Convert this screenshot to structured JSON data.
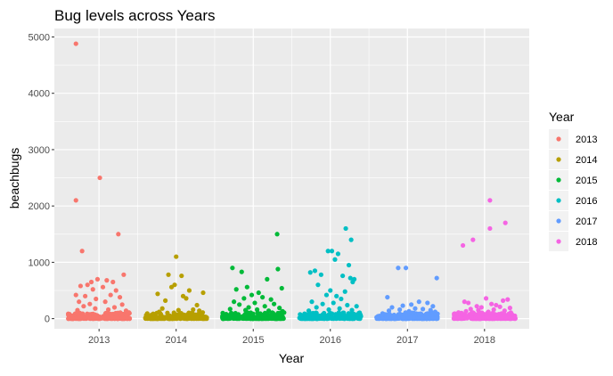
{
  "chart_data": {
    "type": "scatter",
    "title": "Bug levels across Years",
    "xlabel": "Year",
    "ylabel": "beachbugs",
    "categories": [
      "2013",
      "2014",
      "2015",
      "2016",
      "2017",
      "2018"
    ],
    "yticks": [
      0,
      1000,
      2000,
      3000,
      4000,
      5000
    ],
    "ylim": [
      -180,
      5150
    ],
    "grid": true,
    "legend": {
      "title": "Year",
      "placement": "right",
      "entries": [
        "2013",
        "2014",
        "2015",
        "2016",
        "2017",
        "2018"
      ]
    },
    "colors": [
      "#F8766D",
      "#B79F00",
      "#00BA38",
      "#00BFC4",
      "#619CFF",
      "#F564E3"
    ],
    "background": "#EBEBEB",
    "gridline_color": "#FFFFFF",
    "note_jitter": "points jittered horizontally within each year",
    "series": [
      {
        "name": "2013",
        "points": [
          [
            2012.7,
            4880
          ],
          [
            2013.01,
            2500
          ],
          [
            2012.7,
            2100
          ],
          [
            2013.25,
            1500
          ],
          [
            2012.78,
            1200
          ],
          [
            2013.32,
            780
          ],
          [
            2012.98,
            700
          ],
          [
            2013.1,
            680
          ],
          [
            2012.9,
            650
          ],
          [
            2013.18,
            650
          ],
          [
            2012.85,
            600
          ],
          [
            2012.76,
            580
          ],
          [
            2013.05,
            560
          ],
          [
            2012.92,
            520
          ],
          [
            2013.22,
            500
          ],
          [
            2012.7,
            420
          ],
          [
            2012.82,
            400
          ],
          [
            2013.15,
            420
          ],
          [
            2013.27,
            380
          ],
          [
            2012.96,
            350
          ],
          [
            2012.74,
            300
          ],
          [
            2013.08,
            300
          ],
          [
            2012.88,
            260
          ],
          [
            2013.3,
            250
          ],
          [
            2012.8,
            220
          ],
          [
            2013.2,
            200
          ],
          [
            2012.95,
            180
          ],
          [
            2013.12,
            160
          ],
          [
            2012.72,
            150
          ],
          [
            2013.35,
            140
          ]
        ]
      },
      {
        "name": "2014",
        "points": [
          [
            2014.0,
            1100
          ],
          [
            2013.9,
            780
          ],
          [
            2014.07,
            760
          ],
          [
            2013.98,
            600
          ],
          [
            2013.94,
            560
          ],
          [
            2014.17,
            500
          ],
          [
            2014.35,
            460
          ],
          [
            2013.76,
            440
          ],
          [
            2014.09,
            400
          ],
          [
            2014.13,
            360
          ],
          [
            2013.86,
            320
          ],
          [
            2014.27,
            240
          ],
          [
            2013.82,
            180
          ],
          [
            2014.22,
            160
          ],
          [
            2014.03,
            150
          ],
          [
            2014.3,
            140
          ],
          [
            2013.78,
            120
          ]
        ]
      },
      {
        "name": "2015",
        "points": [
          [
            2015.31,
            1500
          ],
          [
            2014.73,
            900
          ],
          [
            2015.32,
            880
          ],
          [
            2014.85,
            830
          ],
          [
            2015.18,
            700
          ],
          [
            2014.92,
            560
          ],
          [
            2015.37,
            540
          ],
          [
            2014.78,
            520
          ],
          [
            2015.07,
            460
          ],
          [
            2014.98,
            420
          ],
          [
            2015.12,
            380
          ],
          [
            2014.88,
            360
          ],
          [
            2015.23,
            340
          ],
          [
            2014.75,
            300
          ],
          [
            2015.02,
            280
          ],
          [
            2015.27,
            260
          ],
          [
            2014.82,
            250
          ],
          [
            2015.15,
            220
          ],
          [
            2014.94,
            200
          ],
          [
            2015.34,
            190
          ],
          [
            2014.7,
            170
          ],
          [
            2015.05,
            160
          ],
          [
            2014.9,
            150
          ],
          [
            2015.2,
            140
          ],
          [
            2015.38,
            130
          ]
        ]
      },
      {
        "name": "2016",
        "points": [
          [
            2016.2,
            1600
          ],
          [
            2016.27,
            1400
          ],
          [
            2015.97,
            1200
          ],
          [
            2016.02,
            1200
          ],
          [
            2016.1,
            1150
          ],
          [
            2016.06,
            1050
          ],
          [
            2016.24,
            950
          ],
          [
            2015.8,
            850
          ],
          [
            2015.74,
            820
          ],
          [
            2015.88,
            780
          ],
          [
            2016.16,
            760
          ],
          [
            2016.26,
            720
          ],
          [
            2016.31,
            700
          ],
          [
            2016.29,
            650
          ],
          [
            2015.84,
            600
          ],
          [
            2016.0,
            500
          ],
          [
            2016.19,
            480
          ],
          [
            2015.95,
            420
          ],
          [
            2016.08,
            400
          ],
          [
            2016.14,
            350
          ],
          [
            2015.76,
            300
          ],
          [
            2016.04,
            280
          ],
          [
            2015.9,
            260
          ],
          [
            2016.22,
            240
          ],
          [
            2016.34,
            220
          ],
          [
            2015.82,
            200
          ],
          [
            2016.12,
            180
          ],
          [
            2015.98,
            160
          ],
          [
            2016.28,
            150
          ],
          [
            2015.72,
            140
          ]
        ]
      },
      {
        "name": "2017",
        "points": [
          [
            2016.88,
            900
          ],
          [
            2016.98,
            900
          ],
          [
            2017.38,
            720
          ],
          [
            2016.74,
            380
          ],
          [
            2017.15,
            300
          ],
          [
            2017.26,
            280
          ],
          [
            2017.05,
            250
          ],
          [
            2016.94,
            230
          ],
          [
            2017.33,
            220
          ],
          [
            2016.8,
            200
          ],
          [
            2017.1,
            180
          ],
          [
            2017.2,
            170
          ],
          [
            2016.9,
            160
          ],
          [
            2017.3,
            150
          ],
          [
            2016.76,
            140
          ],
          [
            2017.02,
            130
          ],
          [
            2017.36,
            120
          ]
        ]
      },
      {
        "name": "2018",
        "points": [
          [
            2018.07,
            2100
          ],
          [
            2018.27,
            1700
          ],
          [
            2018.07,
            1600
          ],
          [
            2017.85,
            1400
          ],
          [
            2017.72,
            1300
          ],
          [
            2018.02,
            360
          ],
          [
            2018.3,
            340
          ],
          [
            2018.24,
            320
          ],
          [
            2017.74,
            300
          ],
          [
            2017.79,
            280
          ],
          [
            2018.09,
            260
          ],
          [
            2018.15,
            240
          ],
          [
            2017.9,
            220
          ],
          [
            2018.2,
            210
          ],
          [
            2017.96,
            200
          ],
          [
            2018.33,
            190
          ],
          [
            2017.82,
            170
          ],
          [
            2018.12,
            160
          ],
          [
            2017.92,
            150
          ],
          [
            2018.26,
            140
          ],
          [
            2017.76,
            130
          ],
          [
            2018.05,
            120
          ]
        ]
      }
    ]
  }
}
